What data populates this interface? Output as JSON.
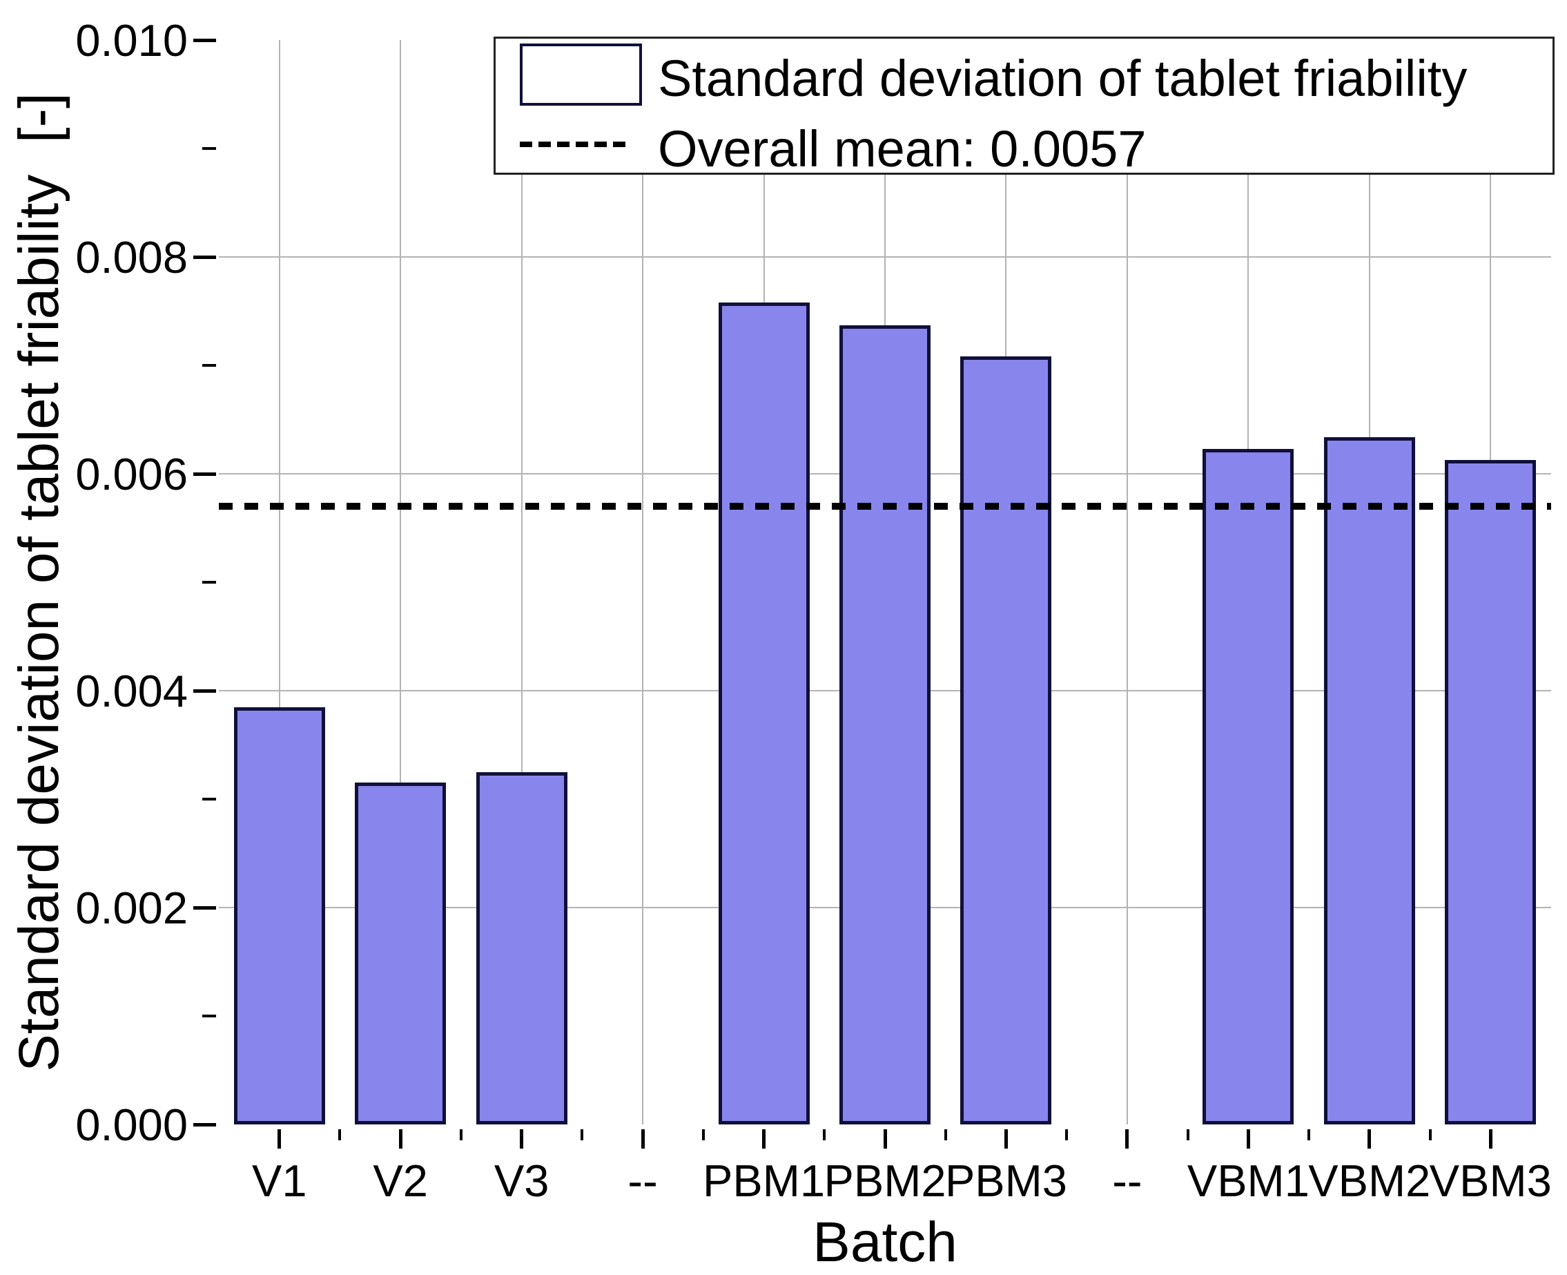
{
  "figure": {
    "y_axis": {
      "title": "Standard deviation of tablet friability  [-]",
      "tick_labels": [
        "0.000",
        "0.002",
        "0.004",
        "0.006",
        "0.008",
        "0.010"
      ],
      "tick_values": [
        0.0,
        0.002,
        0.004,
        0.006,
        0.008,
        0.01
      ],
      "minor_tick_values": [
        0.001,
        0.003,
        0.005,
        0.007,
        0.009
      ],
      "gridline_values": [
        0.002,
        0.004,
        0.006,
        0.008
      ],
      "range": [
        0.0,
        0.01
      ]
    },
    "x_axis": {
      "title": "Batch",
      "categories": [
        "V1",
        "V2",
        "V3",
        "--",
        "PBM1",
        "PBM2",
        "PBM3",
        "--",
        "VBM1",
        "VBM2",
        "VBM3"
      ]
    },
    "legend": {
      "series_label": "Standard deviation of tablet friability",
      "mean_label": "Overall mean: 0.0057"
    },
    "mean_value": 0.0057,
    "colors": {
      "bar_fill": "#8886EC",
      "bar_border": "#10103a",
      "gridline": "#b3b3b3",
      "axis": "#000000",
      "mean_line": "#000000"
    }
  },
  "chart_data": {
    "type": "bar",
    "title": "",
    "xlabel": "Batch",
    "ylabel": "Standard deviation of tablet friability [-]",
    "categories": [
      "V1",
      "V2",
      "V3",
      "--",
      "PBM1",
      "PBM2",
      "PBM3",
      "--",
      "VBM1",
      "VBM2",
      "VBM3"
    ],
    "values": [
      0.00385,
      0.00315,
      0.00325,
      null,
      0.00758,
      0.00737,
      0.00708,
      null,
      0.00623,
      0.00634,
      0.00613
    ],
    "ylim": [
      0.0,
      0.01
    ],
    "y_major_step": 0.002,
    "y_minor_step": 0.001,
    "grid": true,
    "legend_position": "top-right-inside",
    "annotations": [
      {
        "type": "hline",
        "value": 0.0057,
        "style": "dashed",
        "label": "Overall mean: 0.0057"
      }
    ]
  }
}
